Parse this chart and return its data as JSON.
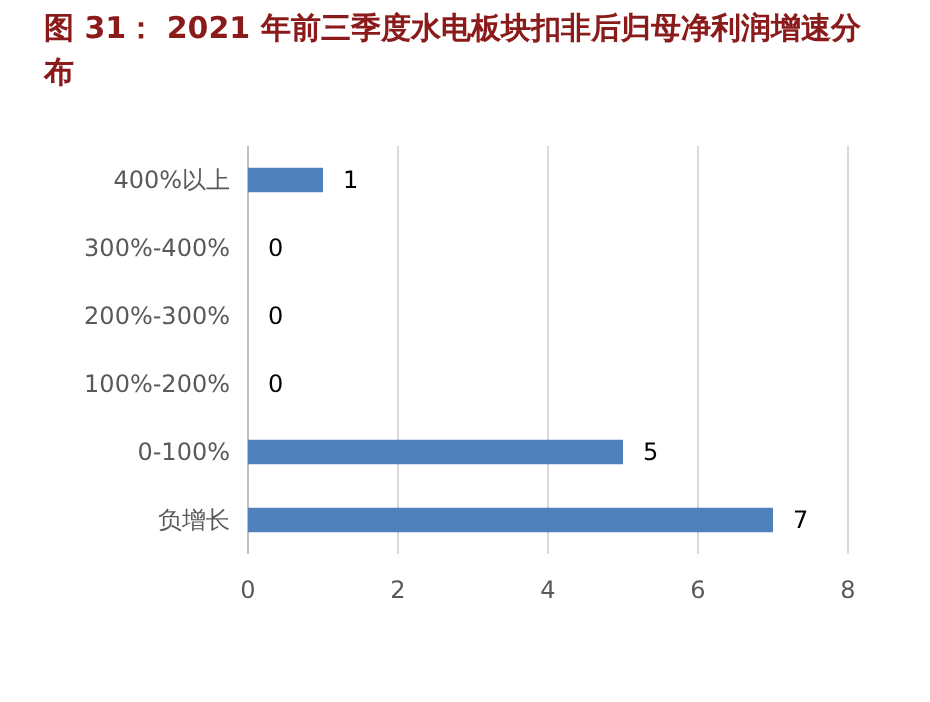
{
  "chart_data": {
    "type": "bar",
    "orientation": "horizontal",
    "title": "图 31： 2021 年前三季度水电板块扣非后归母净利润增速分布",
    "categories": [
      "400%以上",
      "300%-400%",
      "200%-300%",
      "100%-200%",
      "0-100%",
      "负增长"
    ],
    "values": [
      1,
      0,
      0,
      0,
      5,
      7
    ],
    "color": "#4f81bd",
    "xlim": [
      0,
      8
    ],
    "xticks": [
      0,
      2,
      4,
      6,
      8
    ],
    "grid": "x",
    "data_labels": true
  }
}
